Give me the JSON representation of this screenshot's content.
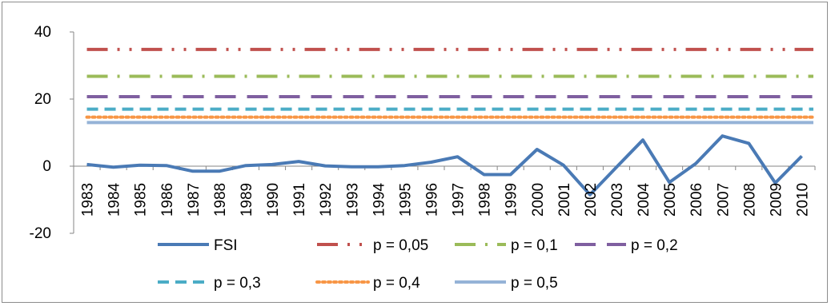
{
  "chart_data": {
    "type": "line",
    "categories": [
      "1983",
      "1984",
      "1985",
      "1986",
      "1987",
      "1988",
      "1989",
      "1990",
      "1991",
      "1992",
      "1993",
      "1994",
      "1995",
      "1996",
      "1997",
      "1998",
      "1999",
      "2000",
      "2001",
      "2002",
      "2003",
      "2004",
      "2005",
      "2006",
      "2007",
      "2008",
      "2009",
      "2010"
    ],
    "ylim": [
      -20,
      40
    ],
    "yticks": [
      "40",
      "20",
      "0",
      "-20"
    ],
    "grid": false,
    "legend_position": "bottom",
    "series": [
      {
        "name": "FSI",
        "color": "#4a7ab5",
        "style": "solid",
        "values": [
          0.5,
          -0.3,
          0.3,
          0.2,
          -1.5,
          -1.5,
          0.2,
          0.5,
          1.4,
          0.1,
          -0.2,
          -0.2,
          0.2,
          1.2,
          2.8,
          -2.5,
          -2.5,
          5.0,
          0.3,
          -8.5,
          -0.3,
          7.8,
          -4.8,
          0.8,
          9.0,
          6.8,
          -5.0,
          3.0
        ]
      },
      {
        "name": "p = 0,05",
        "color": "#c0504d",
        "style": "dash-dot-dot",
        "value": 34.8
      },
      {
        "name": "p = 0,1",
        "color": "#9bbb59",
        "style": "dash-dot",
        "value": 26.8
      },
      {
        "name": "p = 0,2",
        "color": "#7f5fa0",
        "style": "long-dash",
        "value": 20.7
      },
      {
        "name": "p = 0,3",
        "color": "#4bacc6",
        "style": "dash",
        "value": 17.0
      },
      {
        "name": "p = 0,4",
        "color": "#f79646",
        "style": "dot",
        "value": 14.6
      },
      {
        "name": "p = 0,5",
        "color": "#95b3d7",
        "style": "solid",
        "value": 13.0
      }
    ]
  }
}
